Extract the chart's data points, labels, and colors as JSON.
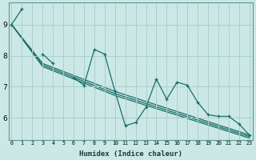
{
  "xlabel": "Humidex (Indice chaleur)",
  "background_color": "#cce8e6",
  "grid_color": "#aacfcc",
  "line_color": "#1a6e6a",
  "series_main": {
    "x": [
      0,
      1,
      2,
      3,
      4,
      5,
      6,
      7,
      8,
      9,
      10,
      11,
      12,
      13,
      14,
      15,
      16,
      17,
      18,
      19,
      20,
      21,
      22,
      23
    ],
    "y": [
      9.0,
      9.5,
      null,
      8.05,
      7.75,
      null,
      7.3,
      7.05,
      8.2,
      8.05,
      6.85,
      5.75,
      5.85,
      6.35,
      7.25,
      6.6,
      7.15,
      7.05,
      6.5,
      6.1,
      6.05,
      6.05,
      5.8,
      5.45
    ]
  },
  "series_lines": [
    {
      "x": [
        0,
        3,
        10,
        23
      ],
      "y": [
        9.0,
        7.75,
        6.85,
        5.45
      ]
    },
    {
      "x": [
        0,
        3,
        10,
        23
      ],
      "y": [
        9.0,
        7.7,
        6.78,
        5.4
      ]
    },
    {
      "x": [
        0,
        3,
        10,
        23
      ],
      "y": [
        9.0,
        7.65,
        6.72,
        5.35
      ]
    }
  ],
  "xlim": [
    0,
    23
  ],
  "ylim": [
    5.3,
    9.7
  ],
  "ytick_values": [
    6,
    7,
    8,
    9
  ],
  "xtick_values": [
    0,
    1,
    2,
    3,
    4,
    5,
    6,
    7,
    8,
    9,
    10,
    11,
    12,
    13,
    14,
    15,
    16,
    17,
    18,
    19,
    20,
    21,
    22,
    23
  ]
}
